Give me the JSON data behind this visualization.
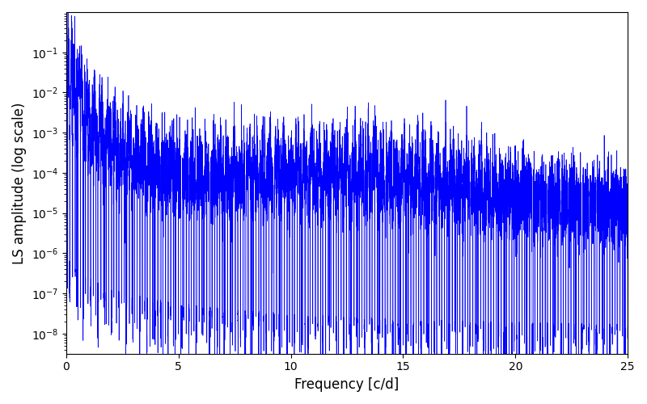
{
  "title": "",
  "xlabel": "Frequency [c/d]",
  "ylabel": "LS amplitude (log scale)",
  "xlim": [
    0,
    25
  ],
  "ylim": [
    1e-09,
    1.0
  ],
  "yticks": [
    1e-08,
    1e-07,
    1e-06,
    1e-05,
    0.0001,
    0.001,
    0.01,
    0.1
  ],
  "xticks": [
    0,
    5,
    10,
    15,
    20,
    25
  ],
  "line_color": "#0000ff",
  "line_width": 0.5,
  "n_points": 10000,
  "freq_max": 25.0,
  "background_color": "#ffffff",
  "fig_width": 8.0,
  "fig_height": 5.0,
  "dpi": 100,
  "seed": 137
}
